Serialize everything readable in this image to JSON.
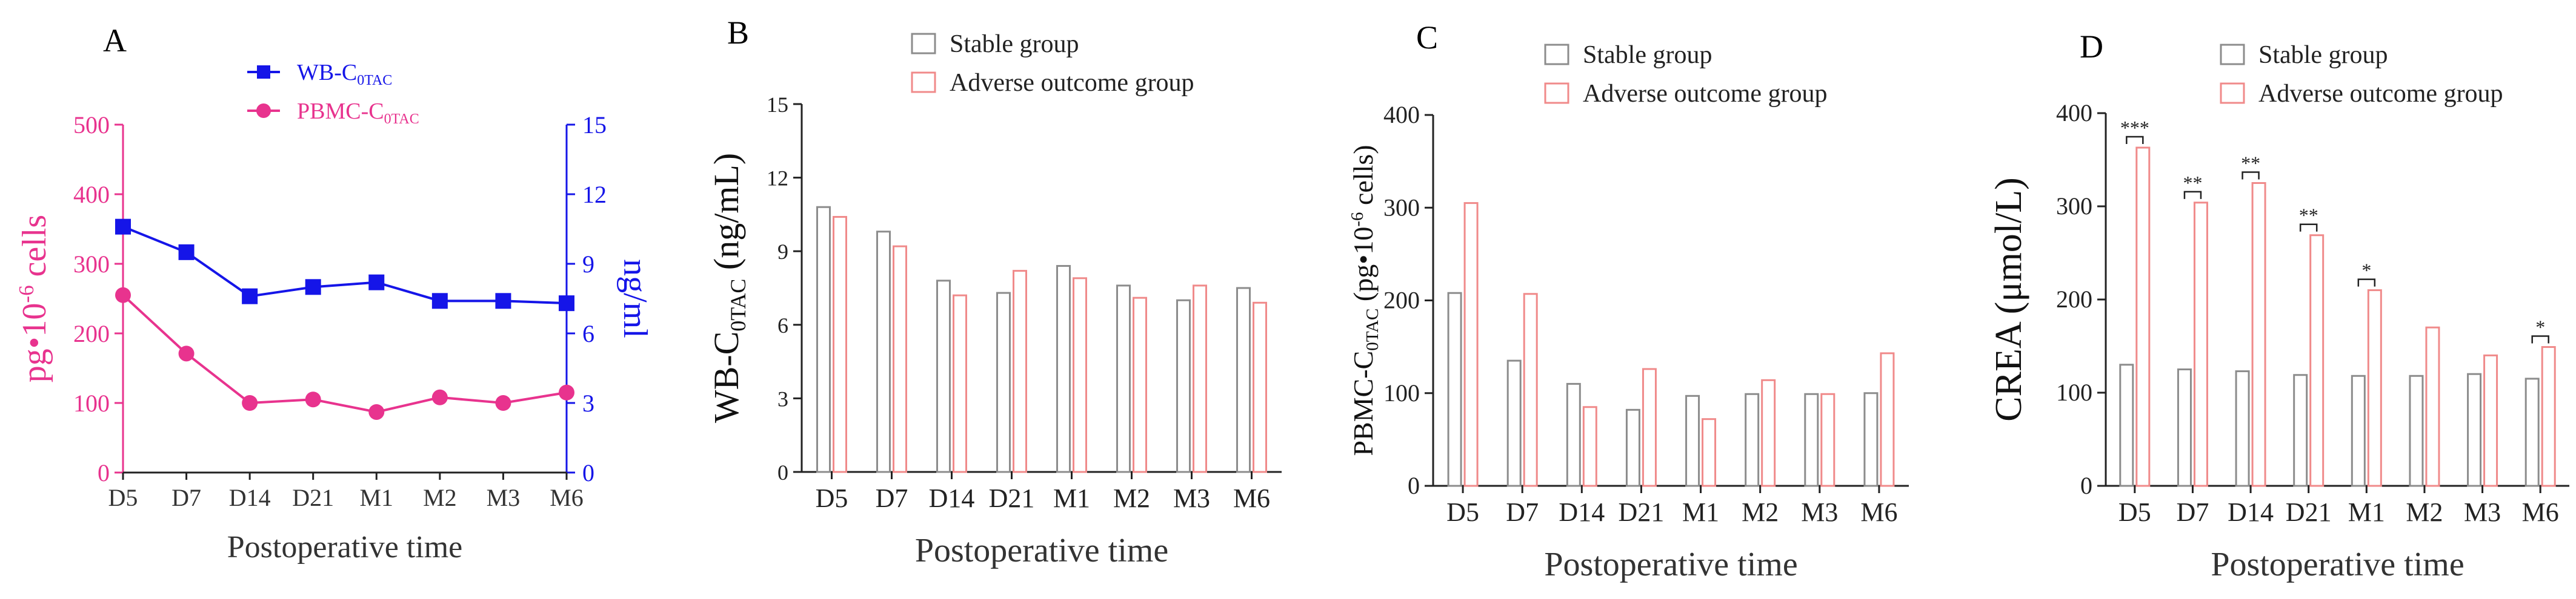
{
  "colors": {
    "pink": "#E8338E",
    "blue": "#1515E8",
    "stable": "#8C8C8C",
    "adverse": "#F08A8A",
    "axis": "#222222"
  },
  "chart_data": [
    {
      "panel": "A",
      "type": "line",
      "xlabel": "Postoperative time",
      "categories": [
        "D5",
        "D7",
        "D14",
        "D21",
        "M1",
        "M2",
        "M3",
        "M6"
      ],
      "left_axis": {
        "label": "pg•10-6 cells",
        "label_parts": [
          "pg•10",
          "-6",
          " cells"
        ],
        "ylim": [
          0,
          500
        ],
        "ticks": [
          "0",
          "100",
          "200",
          "300",
          "400",
          "500"
        ]
      },
      "right_axis": {
        "label": "ng/ml",
        "ylim": [
          0,
          15
        ],
        "ticks": [
          "0",
          "3",
          "6",
          "9",
          "12",
          "15"
        ]
      },
      "series": [
        {
          "name": "WB-C0TAC",
          "name_parts": [
            "WB-C",
            "0TAC"
          ],
          "axis": "right",
          "marker": "square",
          "color": "#1515E8",
          "values": [
            10.6,
            9.5,
            7.6,
            8.0,
            8.2,
            7.4,
            7.4,
            7.3
          ]
        },
        {
          "name": "PBMC-C0TAC",
          "name_parts": [
            "PBMC-C",
            "0TAC"
          ],
          "axis": "left",
          "marker": "circle",
          "color": "#E8338E",
          "values": [
            255,
            171,
            100,
            105,
            87,
            108,
            100,
            115
          ]
        }
      ]
    },
    {
      "panel": "B",
      "type": "bar",
      "xlabel": "Postoperative time",
      "ylabel": "WB-C0TAC (ng/mL)",
      "ylabel_parts": [
        "WB-C",
        "0TAC",
        " (ng/mL)"
      ],
      "ylim": [
        0,
        15
      ],
      "ticks": [
        "0",
        "3",
        "6",
        "9",
        "12",
        "15"
      ],
      "categories": [
        "D5",
        "D7",
        "D14",
        "D21",
        "M1",
        "M2",
        "M3",
        "M6"
      ],
      "series": [
        {
          "name": "Stable group",
          "values": [
            10.8,
            9.8,
            7.8,
            7.3,
            8.4,
            7.6,
            7.0,
            7.5
          ]
        },
        {
          "name": "Adverse outcome group",
          "values": [
            10.4,
            9.2,
            7.2,
            8.2,
            7.9,
            7.1,
            7.6,
            6.9
          ]
        }
      ]
    },
    {
      "panel": "C",
      "type": "bar",
      "xlabel": "Postoperative time",
      "ylabel": "PBMC-C0TAC (pg•10-6 cells)",
      "ylabel_parts": [
        "PBMC-C",
        "0TAC",
        " (pg•10",
        "-6",
        " cells)"
      ],
      "ylim": [
        0,
        400
      ],
      "ticks": [
        "0",
        "100",
        "200",
        "300",
        "400"
      ],
      "categories": [
        "D5",
        "D7",
        "D14",
        "D21",
        "M1",
        "M2",
        "M3",
        "M6"
      ],
      "series": [
        {
          "name": "Stable group",
          "values": [
            208,
            135,
            110,
            82,
            97,
            99,
            99,
            100
          ]
        },
        {
          "name": "Adverse outcome group",
          "values": [
            305,
            207,
            85,
            126,
            72,
            114,
            99,
            143
          ]
        }
      ]
    },
    {
      "panel": "D",
      "type": "bar",
      "xlabel": "Postoperative time",
      "ylabel": "CREA (μmol/L)",
      "ylim": [
        0,
        400
      ],
      "ticks": [
        "0",
        "100",
        "200",
        "300",
        "400"
      ],
      "categories": [
        "D5",
        "D7",
        "D14",
        "D21",
        "M1",
        "M2",
        "M3",
        "M6"
      ],
      "series": [
        {
          "name": "Stable group",
          "values": [
            130,
            125,
            123,
            119,
            118,
            118,
            120,
            115
          ]
        },
        {
          "name": "Adverse outcome group",
          "values": [
            363,
            304,
            325,
            269,
            210,
            170,
            140,
            149
          ]
        }
      ],
      "significance": [
        "***",
        "**",
        "**",
        "**",
        "*",
        "",
        "",
        "*"
      ]
    }
  ]
}
